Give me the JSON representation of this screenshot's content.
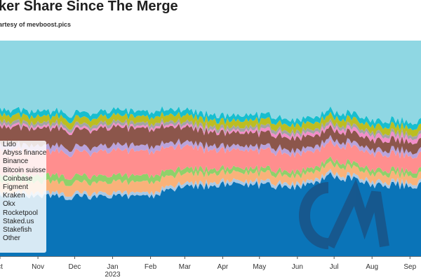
{
  "title": "ker Share Since The Merge",
  "subtitle": "artesy of mevboost.pics",
  "chart_data": {
    "type": "area",
    "stacked": true,
    "normalized": true,
    "ylim": [
      0,
      100
    ],
    "x_start": "2022-10-01",
    "x_end": "2023-09-10",
    "x_ticks": [
      {
        "date": "2022-10-01",
        "label": "ct"
      },
      {
        "date": "2022-11-01",
        "label": "Nov"
      },
      {
        "date": "2022-12-01",
        "label": "Dec"
      },
      {
        "date": "2023-01-01",
        "label": "Jan",
        "sublabel": "2023"
      },
      {
        "date": "2023-02-01",
        "label": "Feb"
      },
      {
        "date": "2023-03-01",
        "label": "Mar"
      },
      {
        "date": "2023-04-01",
        "label": "Apr"
      },
      {
        "date": "2023-05-01",
        "label": "May"
      },
      {
        "date": "2023-06-01",
        "label": "Jun"
      },
      {
        "date": "2023-07-01",
        "label": "Jul"
      },
      {
        "date": "2023-08-01",
        "label": "Aug"
      },
      {
        "date": "2023-09-01",
        "label": "Sep"
      }
    ],
    "x": [
      "2022-10-01",
      "2022-11-01",
      "2022-12-01",
      "2023-01-01",
      "2023-02-01",
      "2023-03-01",
      "2023-04-01",
      "2023-04-15",
      "2023-05-01",
      "2023-06-01",
      "2023-07-01",
      "2023-08-01",
      "2023-09-01",
      "2023-09-10"
    ],
    "series": [
      {
        "name": "Lido",
        "color": "#0a74b8",
        "values": [
          28,
          28,
          27.5,
          27.5,
          28,
          32,
          33,
          33,
          33,
          32,
          38,
          33,
          33,
          33
        ]
      },
      {
        "name": "Abyss finance",
        "color": "#a9c9e6",
        "values": [
          1.5,
          1.5,
          1.5,
          1.5,
          1.5,
          1.5,
          1.5,
          1.5,
          1.5,
          1.5,
          1.5,
          1.5,
          1.5,
          1.5
        ]
      },
      {
        "name": "Binance",
        "color": "#f9b27a",
        "values": [
          5,
          5,
          5,
          5,
          5,
          4.5,
          4,
          4,
          4,
          3.5,
          4,
          3.5,
          3.5,
          3.5
        ]
      },
      {
        "name": "Bitcoin suisse",
        "color": "#8fd16a",
        "values": [
          3,
          3,
          3,
          3,
          3,
          2.5,
          2,
          2,
          2,
          2,
          2,
          2,
          2,
          2
        ]
      },
      {
        "name": "Coinbase",
        "color": "#ff8e8e",
        "values": [
          12,
          11.5,
          11,
          11.5,
          11.5,
          10,
          8.5,
          8.5,
          8.5,
          8,
          7.5,
          7.5,
          7,
          7
        ]
      },
      {
        "name": "Figment",
        "color": "#b9a3db",
        "values": [
          2.5,
          2.5,
          2.5,
          2.5,
          2.5,
          2,
          2,
          2,
          2,
          2,
          2,
          2,
          2,
          2
        ]
      },
      {
        "name": "Kraken",
        "color": "#8c564b",
        "values": [
          8,
          8,
          8,
          8,
          8,
          7,
          6,
          6,
          6,
          5.5,
          4.5,
          4.5,
          4.5,
          4.5
        ]
      },
      {
        "name": "Okx",
        "color": "#f28ec9",
        "values": [
          1,
          1,
          1,
          1,
          1,
          1,
          1,
          1,
          1.5,
          1.5,
          1.5,
          2,
          2,
          2
        ]
      },
      {
        "name": "Rocketpool",
        "color": "#a4a4a4",
        "values": [
          1.5,
          1.5,
          1.5,
          1.5,
          1.5,
          1.5,
          1.5,
          1.5,
          1.5,
          1.5,
          1.5,
          1.5,
          1.5,
          1.5
        ]
      },
      {
        "name": "Staked.us",
        "color": "#bcbd22",
        "values": [
          3,
          3,
          3,
          3,
          3,
          3,
          3,
          3,
          3,
          3,
          3,
          3,
          3,
          3
        ]
      },
      {
        "name": "Stakefish",
        "color": "#17becf",
        "values": [
          2.5,
          2.5,
          2.5,
          2.5,
          2.5,
          2.5,
          2.5,
          2.5,
          2.5,
          2.5,
          2.5,
          2.5,
          2.5,
          2.5
        ]
      },
      {
        "name": "Other",
        "color": "#8fd7e3",
        "values": [
          32,
          32,
          33,
          32.5,
          32,
          32.5,
          35,
          35,
          34.5,
          37,
          32,
          37,
          37.5,
          37.5
        ]
      }
    ],
    "legend_position": "lower-left",
    "grid": false,
    "watermark_color": "#1c4e7e"
  }
}
